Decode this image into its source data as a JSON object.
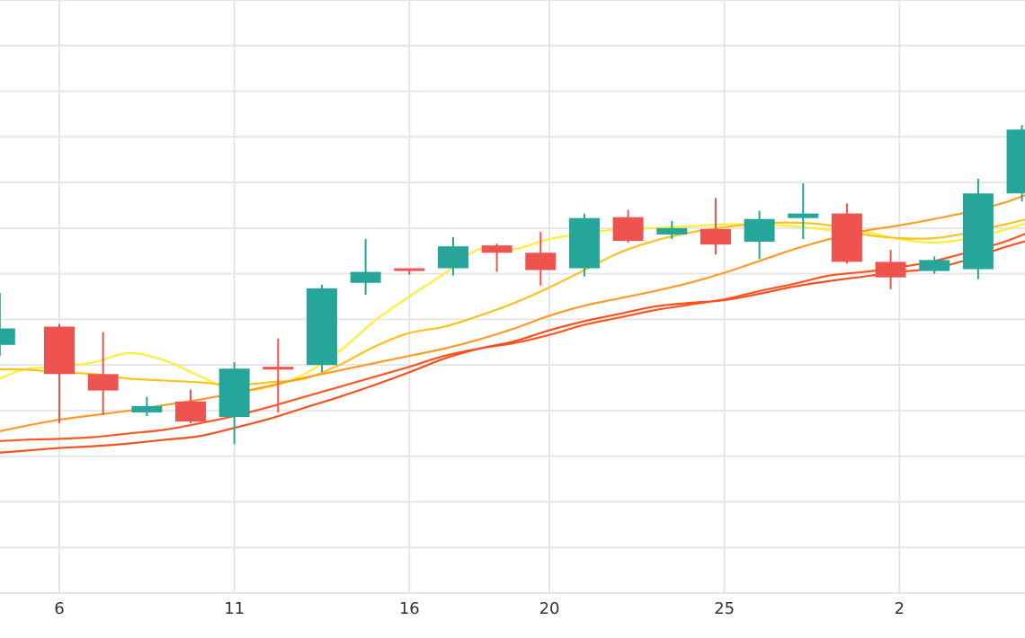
{
  "chart_data": {
    "type": "candlestick",
    "title": "",
    "xlabel": "",
    "ylabel": "",
    "grid": true,
    "x_tick_labels": [
      {
        "day": 6,
        "label": "6"
      },
      {
        "day": 11,
        "label": "11"
      },
      {
        "day": 16,
        "label": "16"
      },
      {
        "day": 20,
        "label": "20"
      },
      {
        "day": 25,
        "label": "25"
      },
      {
        "day": 30,
        "label": "2"
      }
    ],
    "ylim": [
      0,
      65
    ],
    "colors": {
      "up": "#26a69a",
      "down": "#ef5350"
    },
    "candles": [
      {
        "day": 4.3,
        "open": 27.2,
        "close": 29.0,
        "high": 32.9,
        "low": 26.0
      },
      {
        "day": 6.0,
        "open": 29.2,
        "close": 24.0,
        "high": 29.5,
        "low": 18.6
      },
      {
        "day": 7.25,
        "open": 24.0,
        "close": 22.2,
        "high": 28.6,
        "low": 19.5
      },
      {
        "day": 8.5,
        "open": 19.8,
        "close": 20.5,
        "high": 21.5,
        "low": 19.4
      },
      {
        "day": 9.75,
        "open": 21.0,
        "close": 18.8,
        "high": 22.3,
        "low": 18.6
      },
      {
        "day": 11.0,
        "open": 19.3,
        "close": 24.6,
        "high": 25.3,
        "low": 16.3
      },
      {
        "day": 12.25,
        "open": 24.8,
        "close": 24.5,
        "high": 27.9,
        "low": 19.8
      },
      {
        "day": 13.5,
        "open": 25.0,
        "close": 33.4,
        "high": 33.8,
        "low": 24.2
      },
      {
        "day": 14.75,
        "open": 34.0,
        "close": 35.2,
        "high": 38.8,
        "low": 32.7
      },
      {
        "day": 16.0,
        "open": 35.6,
        "close": 35.3,
        "high": 35.6,
        "low": 34.9
      },
      {
        "day": 17.25,
        "open": 35.6,
        "close": 38.0,
        "high": 39.0,
        "low": 34.8
      },
      {
        "day": 18.5,
        "open": 38.1,
        "close": 37.3,
        "high": 38.3,
        "low": 35.2
      },
      {
        "day": 19.75,
        "open": 37.3,
        "close": 35.4,
        "high": 39.6,
        "low": 33.7
      },
      {
        "day": 21.0,
        "open": 35.6,
        "close": 41.1,
        "high": 41.6,
        "low": 34.7
      },
      {
        "day": 22.25,
        "open": 41.2,
        "close": 38.6,
        "high": 42.0,
        "low": 38.4
      },
      {
        "day": 23.5,
        "open": 39.3,
        "close": 40.0,
        "high": 40.8,
        "low": 38.8
      },
      {
        "day": 24.75,
        "open": 39.9,
        "close": 38.2,
        "high": 43.3,
        "low": 37.1
      },
      {
        "day": 26.0,
        "open": 38.5,
        "close": 41.0,
        "high": 41.9,
        "low": 36.6
      },
      {
        "day": 27.25,
        "open": 41.1,
        "close": 41.6,
        "high": 44.9,
        "low": 38.8
      },
      {
        "day": 28.5,
        "open": 41.6,
        "close": 36.3,
        "high": 42.7,
        "low": 36.1
      },
      {
        "day": 29.75,
        "open": 36.3,
        "close": 34.6,
        "high": 37.6,
        "low": 33.3
      },
      {
        "day": 31.0,
        "open": 35.3,
        "close": 36.5,
        "high": 36.9,
        "low": 35.0
      },
      {
        "day": 32.25,
        "open": 35.5,
        "close": 43.8,
        "high": 45.4,
        "low": 34.4
      },
      {
        "day": 33.5,
        "open": 43.8,
        "close": 50.8,
        "high": 51.3,
        "low": 42.9
      }
    ],
    "series": [
      {
        "color": "#ffee33",
        "x": [
          4,
          5,
          6,
          7,
          8,
          9,
          10,
          11,
          12,
          13,
          14,
          15,
          16,
          17,
          18,
          19,
          20,
          21,
          22,
          23,
          24,
          25,
          26,
          27,
          28,
          29,
          30,
          31,
          32,
          33,
          34
        ],
        "values": [
          23,
          24.5,
          24.8,
          25.3,
          26.3,
          25.5,
          23.8,
          22.2,
          22.6,
          24.0,
          26.5,
          29.8,
          32.5,
          35.0,
          37.7,
          37.7,
          38.8,
          39.4,
          39.9,
          40.0,
          40.2,
          40.4,
          40.4,
          40.2,
          39.8,
          39.6,
          38.8,
          38.4,
          38.9,
          39.8,
          41.0
        ]
      },
      {
        "color": "#fcc21b",
        "x": [
          4,
          5,
          6,
          7,
          8,
          9,
          10,
          11,
          12,
          13,
          14,
          15,
          16,
          17,
          18,
          19,
          20,
          21,
          22,
          23,
          24,
          25,
          26,
          27,
          28,
          29,
          30,
          31,
          32,
          33,
          34
        ],
        "values": [
          24.5,
          24.5,
          24.2,
          24.0,
          23.5,
          23.3,
          23.1,
          22.8,
          23.1,
          23.5,
          25.0,
          27.0,
          28.5,
          29.2,
          30.4,
          31.8,
          33.5,
          35.4,
          37.3,
          38.6,
          39.5,
          40.1,
          40.5,
          40.6,
          40.3,
          39.3,
          38.9,
          38.9,
          39.5,
          40.4,
          41.3
        ]
      },
      {
        "color": "#ff9b26",
        "x": [
          4,
          5,
          6,
          7,
          8,
          9,
          10,
          11,
          12,
          13,
          14,
          15,
          16,
          17,
          18,
          19,
          20,
          21,
          22,
          23,
          24,
          25,
          26,
          27,
          28,
          29,
          30,
          31,
          32,
          33,
          34
        ],
        "values": [
          17.5,
          18.3,
          19.0,
          19.5,
          20.0,
          20.6,
          21.2,
          21.9,
          22.7,
          23.6,
          24.4,
          25.2,
          26.0,
          26.8,
          27.8,
          29.0,
          30.4,
          31.5,
          32.3,
          33.1,
          34.0,
          35.1,
          36.4,
          37.7,
          38.8,
          39.7,
          40.3,
          41.0,
          41.8,
          42.8,
          44.2
        ]
      },
      {
        "color": "#ff5722",
        "x": [
          4,
          5,
          6,
          7,
          8,
          9,
          10,
          11,
          12,
          13,
          14,
          15,
          16,
          17,
          18,
          19,
          20,
          21,
          22,
          23,
          24,
          25,
          26,
          27,
          28,
          29,
          30,
          31,
          32,
          33,
          34
        ],
        "values": [
          16.6,
          16.8,
          16.9,
          17.1,
          17.5,
          17.9,
          18.6,
          19.4,
          20.4,
          21.5,
          22.6,
          23.7,
          24.8,
          26.0,
          26.8,
          27.4,
          28.3,
          29.4,
          30.2,
          31.0,
          31.6,
          32.2,
          33.1,
          33.9,
          34.8,
          35.2,
          35.7,
          36.4,
          37.4,
          38.5,
          40.0
        ]
      },
      {
        "color": "#f4511e",
        "x": [
          4,
          5,
          6,
          7,
          8,
          9,
          10,
          11,
          12,
          13,
          14,
          15,
          16,
          17,
          18,
          19,
          20,
          21,
          22,
          23,
          24,
          25,
          26,
          27,
          28,
          29,
          30,
          31,
          32,
          33,
          34
        ],
        "values": [
          15.3,
          15.6,
          15.9,
          16.1,
          16.4,
          16.8,
          17.2,
          18.1,
          19.1,
          20.3,
          21.5,
          22.8,
          24.2,
          25.7,
          26.8,
          27.6,
          28.8,
          29.8,
          30.6,
          31.4,
          31.8,
          32.1,
          32.8,
          33.6,
          34.2,
          34.7,
          35.2,
          35.6,
          36.6,
          37.9,
          39.0
        ]
      }
    ]
  }
}
